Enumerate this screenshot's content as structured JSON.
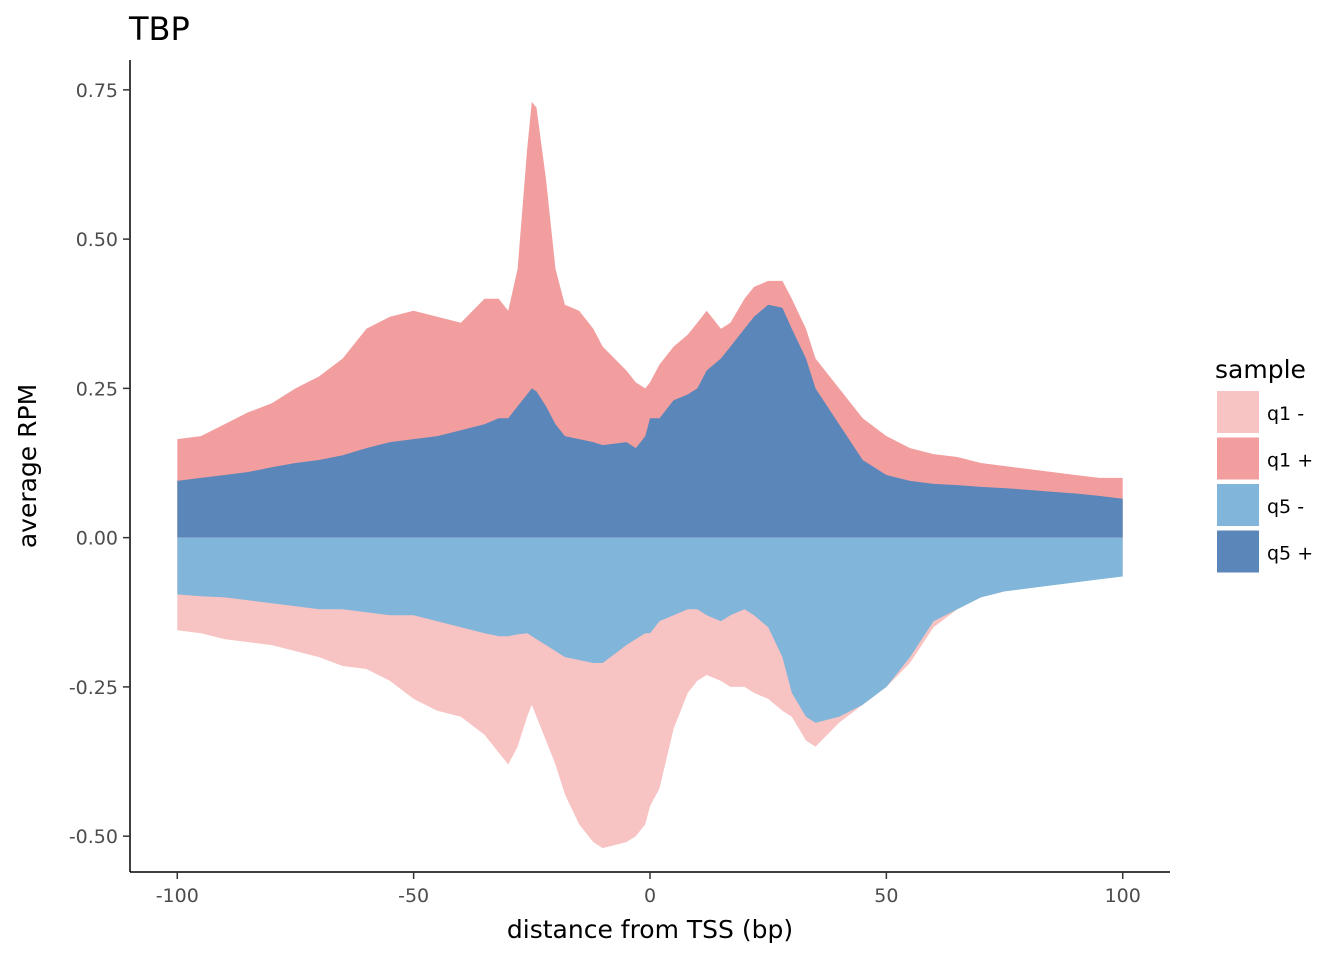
{
  "chart_data": {
    "type": "area",
    "title": "TBP",
    "xlabel": "distance from TSS (bp)",
    "ylabel": "average RPM",
    "xlim": [
      -110,
      110
    ],
    "ylim": [
      -0.56,
      0.8
    ],
    "x_ticks": [
      -100,
      -50,
      0,
      50,
      100
    ],
    "x_tick_labels": [
      "-100",
      "-50",
      "0",
      "50",
      "100"
    ],
    "y_ticks": [
      -0.5,
      -0.25,
      0,
      0.25,
      0.5,
      0.75
    ],
    "y_tick_labels": [
      "-0.50",
      "-0.25",
      "0.00",
      "0.25",
      "0.50",
      "0.75"
    ],
    "grid": false,
    "legend": {
      "title": "sample",
      "position": "right",
      "entries": [
        "q1 -",
        "q1 +",
        "q5 -",
        "q5 +"
      ]
    },
    "series": [
      {
        "name": "q1 +",
        "color": "#f29e9f",
        "x": [
          -100,
          -95,
          -90,
          -85,
          -80,
          -75,
          -70,
          -65,
          -60,
          -55,
          -50,
          -45,
          -40,
          -35,
          -32,
          -30,
          -28,
          -26,
          -25,
          -24,
          -22,
          -20,
          -18,
          -15,
          -12,
          -10,
          -5,
          -3,
          -1,
          0,
          2,
          5,
          8,
          10,
          12,
          15,
          17,
          20,
          22,
          25,
          28,
          30,
          33,
          35,
          40,
          45,
          50,
          55,
          60,
          65,
          70,
          75,
          80,
          85,
          90,
          95,
          100
        ],
        "y": [
          0.165,
          0.17,
          0.19,
          0.21,
          0.225,
          0.25,
          0.27,
          0.3,
          0.35,
          0.37,
          0.38,
          0.37,
          0.36,
          0.4,
          0.4,
          0.38,
          0.45,
          0.65,
          0.73,
          0.72,
          0.6,
          0.45,
          0.39,
          0.38,
          0.35,
          0.32,
          0.28,
          0.26,
          0.25,
          0.26,
          0.29,
          0.32,
          0.34,
          0.36,
          0.38,
          0.35,
          0.36,
          0.4,
          0.42,
          0.43,
          0.43,
          0.4,
          0.35,
          0.3,
          0.25,
          0.2,
          0.17,
          0.15,
          0.14,
          0.135,
          0.125,
          0.12,
          0.115,
          0.11,
          0.105,
          0.1,
          0.1
        ]
      },
      {
        "name": "q5 +",
        "color": "#5b86b9",
        "x": [
          -100,
          -95,
          -90,
          -85,
          -80,
          -75,
          -70,
          -65,
          -60,
          -55,
          -50,
          -45,
          -40,
          -35,
          -32,
          -30,
          -28,
          -26,
          -25,
          -24,
          -22,
          -20,
          -18,
          -15,
          -12,
          -10,
          -5,
          -3,
          -1,
          0,
          2,
          5,
          8,
          10,
          12,
          15,
          17,
          20,
          22,
          25,
          28,
          30,
          33,
          35,
          40,
          45,
          50,
          55,
          60,
          65,
          70,
          75,
          80,
          85,
          90,
          95,
          100
        ],
        "y": [
          0.095,
          0.1,
          0.105,
          0.11,
          0.118,
          0.125,
          0.13,
          0.138,
          0.15,
          0.16,
          0.165,
          0.17,
          0.18,
          0.19,
          0.2,
          0.2,
          0.22,
          0.24,
          0.25,
          0.245,
          0.22,
          0.19,
          0.17,
          0.165,
          0.16,
          0.155,
          0.16,
          0.15,
          0.17,
          0.2,
          0.2,
          0.23,
          0.24,
          0.25,
          0.28,
          0.3,
          0.32,
          0.35,
          0.37,
          0.39,
          0.385,
          0.35,
          0.3,
          0.25,
          0.19,
          0.13,
          0.105,
          0.095,
          0.09,
          0.088,
          0.085,
          0.083,
          0.08,
          0.077,
          0.074,
          0.07,
          0.065
        ]
      },
      {
        "name": "q1 -",
        "color": "#f8c3c3",
        "x": [
          -100,
          -95,
          -90,
          -85,
          -80,
          -75,
          -70,
          -65,
          -60,
          -55,
          -50,
          -45,
          -40,
          -35,
          -32,
          -30,
          -28,
          -26,
          -25,
          -24,
          -22,
          -20,
          -18,
          -15,
          -12,
          -10,
          -5,
          -3,
          -1,
          0,
          2,
          5,
          8,
          10,
          12,
          15,
          17,
          20,
          22,
          25,
          28,
          30,
          33,
          35,
          40,
          45,
          50,
          55,
          60,
          65,
          70,
          75,
          80,
          85,
          90,
          95,
          100
        ],
        "y": [
          -0.155,
          -0.16,
          -0.17,
          -0.175,
          -0.18,
          -0.19,
          -0.2,
          -0.215,
          -0.22,
          -0.24,
          -0.27,
          -0.29,
          -0.3,
          -0.33,
          -0.36,
          -0.38,
          -0.35,
          -0.3,
          -0.28,
          -0.3,
          -0.34,
          -0.38,
          -0.43,
          -0.48,
          -0.51,
          -0.52,
          -0.51,
          -0.5,
          -0.48,
          -0.45,
          -0.42,
          -0.32,
          -0.26,
          -0.24,
          -0.23,
          -0.24,
          -0.25,
          -0.25,
          -0.26,
          -0.27,
          -0.29,
          -0.3,
          -0.34,
          -0.35,
          -0.31,
          -0.28,
          -0.25,
          -0.21,
          -0.15,
          -0.12,
          -0.1,
          -0.09,
          -0.08,
          -0.075,
          -0.07,
          -0.065,
          -0.06
        ]
      },
      {
        "name": "q5 -",
        "color": "#81b5d9",
        "x": [
          -100,
          -95,
          -90,
          -85,
          -80,
          -75,
          -70,
          -65,
          -60,
          -55,
          -50,
          -45,
          -40,
          -35,
          -32,
          -30,
          -28,
          -26,
          -25,
          -24,
          -22,
          -20,
          -18,
          -15,
          -12,
          -10,
          -5,
          -3,
          -1,
          0,
          2,
          5,
          8,
          10,
          12,
          15,
          17,
          20,
          22,
          25,
          28,
          30,
          33,
          35,
          40,
          45,
          50,
          55,
          60,
          65,
          70,
          75,
          80,
          85,
          90,
          95,
          100
        ],
        "y": [
          -0.095,
          -0.098,
          -0.1,
          -0.105,
          -0.11,
          -0.115,
          -0.12,
          -0.12,
          -0.125,
          -0.13,
          -0.13,
          -0.14,
          -0.15,
          -0.16,
          -0.165,
          -0.165,
          -0.162,
          -0.16,
          -0.165,
          -0.17,
          -0.18,
          -0.19,
          -0.2,
          -0.205,
          -0.21,
          -0.21,
          -0.18,
          -0.17,
          -0.16,
          -0.16,
          -0.14,
          -0.13,
          -0.12,
          -0.12,
          -0.13,
          -0.14,
          -0.13,
          -0.12,
          -0.13,
          -0.15,
          -0.2,
          -0.26,
          -0.3,
          -0.31,
          -0.3,
          -0.28,
          -0.25,
          -0.2,
          -0.14,
          -0.12,
          -0.1,
          -0.09,
          -0.085,
          -0.08,
          -0.075,
          -0.07,
          -0.065
        ]
      }
    ]
  }
}
